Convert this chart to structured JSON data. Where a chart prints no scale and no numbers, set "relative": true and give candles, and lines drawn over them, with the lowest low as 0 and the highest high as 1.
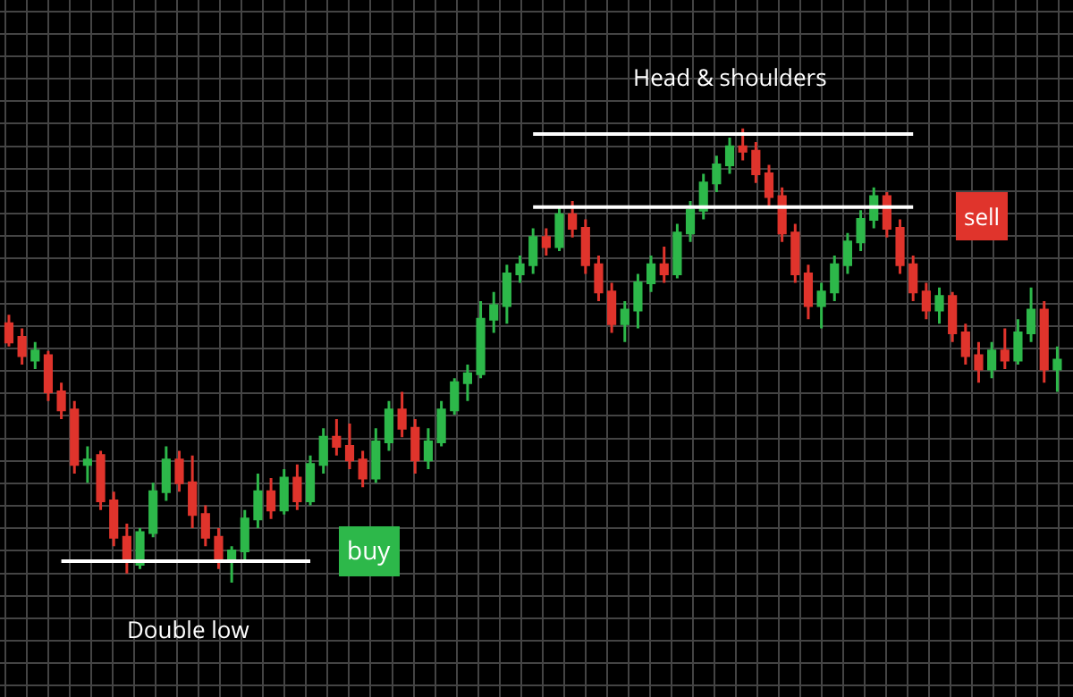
{
  "chart_data": {
    "type": "candlestick",
    "relative": true,
    "grid": true,
    "categories": [
      null,
      null,
      null,
      null,
      null,
      null,
      null,
      null,
      null,
      null,
      null,
      null,
      null,
      null,
      null,
      null,
      null,
      null,
      null,
      null,
      null,
      null,
      null,
      null,
      null,
      null,
      null,
      null,
      null,
      null,
      null,
      null,
      null,
      null,
      null,
      null,
      null,
      null,
      null,
      null,
      null,
      null,
      null,
      null,
      null,
      null,
      null,
      null,
      null,
      null,
      null,
      null,
      null,
      null,
      null,
      null,
      null,
      null,
      null,
      null,
      null,
      null,
      null,
      null,
      null,
      null,
      null,
      null,
      null,
      null,
      null,
      null,
      null,
      null,
      null,
      null,
      null,
      null,
      null,
      null,
      null
    ],
    "ohlc": [
      [
        0.57,
        0.59,
        0.52,
        0.53
      ],
      [
        0.54,
        0.56,
        0.48,
        0.5
      ],
      [
        0.49,
        0.53,
        0.47,
        0.51
      ],
      [
        0.5,
        0.51,
        0.4,
        0.42
      ],
      [
        0.42,
        0.44,
        0.36,
        0.38
      ],
      [
        0.38,
        0.4,
        0.24,
        0.26
      ],
      [
        0.26,
        0.3,
        0.22,
        0.27
      ],
      [
        0.28,
        0.29,
        0.16,
        0.18
      ],
      [
        0.18,
        0.2,
        0.08,
        0.1
      ],
      [
        0.1,
        0.13,
        0.02,
        0.05
      ],
      [
        0.04,
        0.12,
        0.03,
        0.11
      ],
      [
        0.11,
        0.22,
        0.1,
        0.2
      ],
      [
        0.2,
        0.3,
        0.18,
        0.27
      ],
      [
        0.27,
        0.29,
        0.2,
        0.22
      ],
      [
        0.22,
        0.28,
        0.12,
        0.15
      ],
      [
        0.15,
        0.17,
        0.08,
        0.1
      ],
      [
        0.1,
        0.12,
        0.03,
        0.05
      ],
      [
        0.05,
        0.08,
        0.0,
        0.07
      ],
      [
        0.07,
        0.16,
        0.05,
        0.14
      ],
      [
        0.14,
        0.24,
        0.12,
        0.2
      ],
      [
        0.2,
        0.23,
        0.14,
        0.16
      ],
      [
        0.16,
        0.25,
        0.15,
        0.23
      ],
      [
        0.23,
        0.26,
        0.16,
        0.18
      ],
      [
        0.18,
        0.28,
        0.17,
        0.26
      ],
      [
        0.26,
        0.34,
        0.24,
        0.32
      ],
      [
        0.32,
        0.36,
        0.28,
        0.3
      ],
      [
        0.3,
        0.35,
        0.25,
        0.27
      ],
      [
        0.27,
        0.29,
        0.21,
        0.23
      ],
      [
        0.23,
        0.34,
        0.22,
        0.31
      ],
      [
        0.31,
        0.4,
        0.29,
        0.38
      ],
      [
        0.38,
        0.42,
        0.32,
        0.34
      ],
      [
        0.34,
        0.36,
        0.24,
        0.27
      ],
      [
        0.27,
        0.34,
        0.25,
        0.31
      ],
      [
        0.31,
        0.4,
        0.3,
        0.38
      ],
      [
        0.38,
        0.45,
        0.37,
        0.44
      ],
      [
        0.44,
        0.48,
        0.4,
        0.46
      ],
      [
        0.46,
        0.62,
        0.45,
        0.58
      ],
      [
        0.58,
        0.64,
        0.55,
        0.61
      ],
      [
        0.61,
        0.7,
        0.57,
        0.68
      ],
      [
        0.68,
        0.72,
        0.66,
        0.7
      ],
      [
        0.7,
        0.78,
        0.68,
        0.76
      ],
      [
        0.76,
        0.78,
        0.72,
        0.74
      ],
      [
        0.74,
        0.83,
        0.73,
        0.81
      ],
      [
        0.81,
        0.84,
        0.76,
        0.78
      ],
      [
        0.78,
        0.8,
        0.68,
        0.7
      ],
      [
        0.7,
        0.72,
        0.62,
        0.64
      ],
      [
        0.64,
        0.66,
        0.55,
        0.57
      ],
      [
        0.57,
        0.62,
        0.53,
        0.6
      ],
      [
        0.6,
        0.68,
        0.56,
        0.66
      ],
      [
        0.66,
        0.72,
        0.64,
        0.7
      ],
      [
        0.7,
        0.74,
        0.66,
        0.68
      ],
      [
        0.68,
        0.79,
        0.67,
        0.77
      ],
      [
        0.77,
        0.84,
        0.75,
        0.82
      ],
      [
        0.82,
        0.9,
        0.8,
        0.88
      ],
      [
        0.88,
        0.94,
        0.86,
        0.92
      ],
      [
        0.92,
        0.98,
        0.9,
        0.96
      ],
      [
        0.96,
        1.0,
        0.93,
        0.95
      ],
      [
        0.95,
        0.97,
        0.88,
        0.9
      ],
      [
        0.9,
        0.92,
        0.83,
        0.85
      ],
      [
        0.85,
        0.87,
        0.75,
        0.77
      ],
      [
        0.77,
        0.79,
        0.66,
        0.68
      ],
      [
        0.68,
        0.7,
        0.58,
        0.61
      ],
      [
        0.61,
        0.66,
        0.56,
        0.64
      ],
      [
        0.64,
        0.72,
        0.62,
        0.7
      ],
      [
        0.7,
        0.77,
        0.68,
        0.75
      ],
      [
        0.75,
        0.82,
        0.73,
        0.8
      ],
      [
        0.8,
        0.87,
        0.78,
        0.85
      ],
      [
        0.85,
        0.86,
        0.76,
        0.78
      ],
      [
        0.78,
        0.8,
        0.68,
        0.7
      ],
      [
        0.7,
        0.72,
        0.62,
        0.64
      ],
      [
        0.64,
        0.66,
        0.58,
        0.6
      ],
      [
        0.6,
        0.65,
        0.57,
        0.63
      ],
      [
        0.63,
        0.64,
        0.53,
        0.55
      ],
      [
        0.55,
        0.57,
        0.48,
        0.5
      ],
      [
        0.5,
        0.53,
        0.44,
        0.47
      ],
      [
        0.47,
        0.53,
        0.45,
        0.51
      ],
      [
        0.51,
        0.56,
        0.47,
        0.49
      ],
      [
        0.49,
        0.58,
        0.48,
        0.55
      ],
      [
        0.55,
        0.65,
        0.53,
        0.6
      ],
      [
        0.6,
        0.62,
        0.44,
        0.47
      ],
      [
        0.47,
        0.52,
        0.42,
        0.49
      ]
    ],
    "colors": [
      "#e0342c",
      "#e0342c",
      "#2db84a",
      "#e0342c",
      "#e0342c",
      "#e0342c",
      "#2db84a",
      "#e0342c",
      "#e0342c",
      "#e0342c",
      "#2db84a",
      "#2db84a",
      "#2db84a",
      "#e0342c",
      "#e0342c",
      "#e0342c",
      "#e0342c",
      "#2db84a",
      "#2db84a",
      "#2db84a",
      "#e0342c",
      "#2db84a",
      "#e0342c",
      "#2db84a",
      "#2db84a",
      "#e0342c",
      "#e0342c",
      "#e0342c",
      "#2db84a",
      "#2db84a",
      "#e0342c",
      "#e0342c",
      "#2db84a",
      "#2db84a",
      "#2db84a",
      "#2db84a",
      "#2db84a",
      "#2db84a",
      "#2db84a",
      "#2db84a",
      "#2db84a",
      "#e0342c",
      "#2db84a",
      "#e0342c",
      "#e0342c",
      "#e0342c",
      "#e0342c",
      "#2db84a",
      "#2db84a",
      "#2db84a",
      "#e0342c",
      "#2db84a",
      "#2db84a",
      "#2db84a",
      "#2db84a",
      "#2db84a",
      "#e0342c",
      "#e0342c",
      "#e0342c",
      "#e0342c",
      "#e0342c",
      "#e0342c",
      "#2db84a",
      "#2db84a",
      "#2db84a",
      "#2db84a",
      "#2db84a",
      "#e0342c",
      "#e0342c",
      "#e0342c",
      "#e0342c",
      "#2db84a",
      "#e0342c",
      "#e0342c",
      "#e0342c",
      "#2db84a",
      "#e0342c",
      "#2db84a",
      "#2db84a",
      "#e0342c",
      "#2db84a"
    ],
    "series": [
      {
        "type": "line",
        "color": "#ffffff",
        "values": [
          null,
          null,
          null,
          null,
          0.047,
          0.047,
          0.047,
          0.047,
          0.047,
          0.047,
          0.047,
          0.047,
          0.047,
          0.047,
          0.047,
          0.047,
          0.047,
          0.047,
          0.047,
          0.047,
          0.047,
          0.047,
          0.047,
          0.047,
          null,
          null,
          null,
          null,
          null,
          null,
          null,
          null,
          null,
          null,
          null,
          null,
          null,
          null,
          null,
          null,
          null,
          null,
          null,
          null,
          null,
          null,
          null,
          null,
          null,
          null,
          null,
          null,
          null,
          null,
          null,
          null,
          null,
          null,
          null,
          null,
          null,
          null,
          null,
          null,
          null,
          null,
          null,
          null,
          null,
          null,
          null,
          null,
          null,
          null,
          null,
          null,
          null,
          null,
          null,
          null,
          null
        ]
      },
      {
        "type": "line",
        "color": "#ffffff",
        "values": [
          null,
          null,
          null,
          null,
          null,
          null,
          null,
          null,
          null,
          null,
          null,
          null,
          null,
          null,
          null,
          null,
          null,
          null,
          null,
          null,
          null,
          null,
          null,
          null,
          null,
          null,
          null,
          null,
          null,
          null,
          null,
          null,
          null,
          null,
          null,
          null,
          null,
          null,
          null,
          null,
          0.988,
          0.988,
          0.988,
          0.988,
          0.988,
          0.988,
          0.988,
          0.988,
          0.988,
          0.988,
          0.988,
          0.988,
          0.988,
          0.988,
          0.988,
          0.988,
          0.988,
          0.988,
          0.988,
          0.988,
          0.988,
          0.988,
          0.988,
          0.988,
          0.988,
          0.988,
          0.988,
          0.988,
          0.988,
          0.988,
          null,
          null,
          null,
          null,
          null,
          null,
          null,
          null,
          null,
          null,
          null
        ]
      },
      {
        "type": "line",
        "color": "#ffffff",
        "values": [
          null,
          null,
          null,
          null,
          null,
          null,
          null,
          null,
          null,
          null,
          null,
          null,
          null,
          null,
          null,
          null,
          null,
          null,
          null,
          null,
          null,
          null,
          null,
          null,
          null,
          null,
          null,
          null,
          null,
          null,
          null,
          null,
          null,
          null,
          null,
          null,
          null,
          null,
          null,
          null,
          0.827,
          0.827,
          0.827,
          0.827,
          0.827,
          0.827,
          0.827,
          0.827,
          0.827,
          0.827,
          0.827,
          0.827,
          0.827,
          0.827,
          0.827,
          0.827,
          0.827,
          0.827,
          0.827,
          0.827,
          0.827,
          0.827,
          0.827,
          0.827,
          0.827,
          0.827,
          0.827,
          0.827,
          0.827,
          0.827,
          null,
          null,
          null,
          null,
          null,
          null,
          null,
          null,
          null,
          null,
          null
        ]
      }
    ],
    "annotations": [
      "Head & shoulders",
      "Double low",
      "buy",
      "sell"
    ]
  }
}
